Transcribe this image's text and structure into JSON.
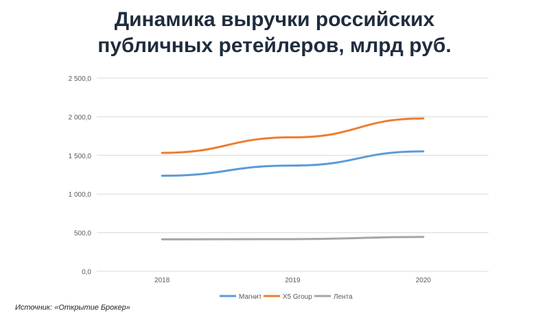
{
  "title_lines": [
    "Динамика выручки российских",
    "публичных ретейлеров, млрд руб."
  ],
  "source": "Источник: «Открытие Брокер»",
  "chart_data": {
    "type": "line",
    "x": [
      "2018",
      "2019",
      "2020"
    ],
    "series": [
      {
        "name": "Магнит",
        "color": "#5b9bd5",
        "values": [
          1237,
          1369,
          1553
        ]
      },
      {
        "name": "X5 Group",
        "color": "#ed7d31",
        "values": [
          1533,
          1734,
          1978
        ]
      },
      {
        "name": "Лента",
        "color": "#a5a5a5",
        "values": [
          414,
          417,
          445
        ]
      }
    ],
    "ylim": [
      0,
      2500
    ],
    "yticks": [
      0,
      500,
      1000,
      1500,
      2000,
      2500
    ],
    "ytick_labels": [
      "0,0",
      "500,0",
      "1 000,0",
      "1 500,0",
      "2 000,0",
      "2 500,0"
    ],
    "grid": true,
    "legend": "bottom"
  }
}
